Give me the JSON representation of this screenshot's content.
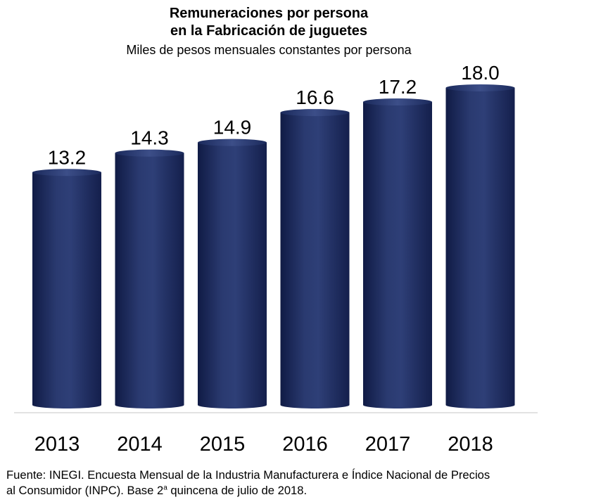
{
  "title_line1": "Remuneraciones por persona",
  "title_line2": "en la Fabricación de juguetes",
  "subtitle": "Miles de pesos mensuales constantes por persona",
  "source_line1": "Fuente: INEGI. Encuesta Mensual de la Industria Manufacturera e Índice Nacional de Precios",
  "source_line2_a": "al Consumidor (INPC). Base 2",
  "source_line2_sup": "a",
  "source_line2_b": " quincena de julio de 2018.",
  "colors": {
    "bar_dark": "#162456",
    "bar_mid": "#2b3c73",
    "bar_light": "#3b4d86",
    "axis": "#d9d9d9"
  },
  "chart_data": {
    "type": "bar",
    "categories": [
      "2013",
      "2014",
      "2015",
      "2016",
      "2017",
      "2018"
    ],
    "values": [
      13.2,
      14.3,
      14.9,
      16.6,
      17.2,
      18.0
    ],
    "data_labels": [
      "13.2",
      "14.3",
      "14.9",
      "16.6",
      "17.2",
      "18.0"
    ],
    "title": "Remuneraciones por persona en la Fabricación de juguetes",
    "subtitle": "Miles de pesos mensuales constantes por persona",
    "ylim": [
      0,
      18.0
    ],
    "grid": false,
    "legend": "none",
    "bar_style": "cylinder"
  }
}
